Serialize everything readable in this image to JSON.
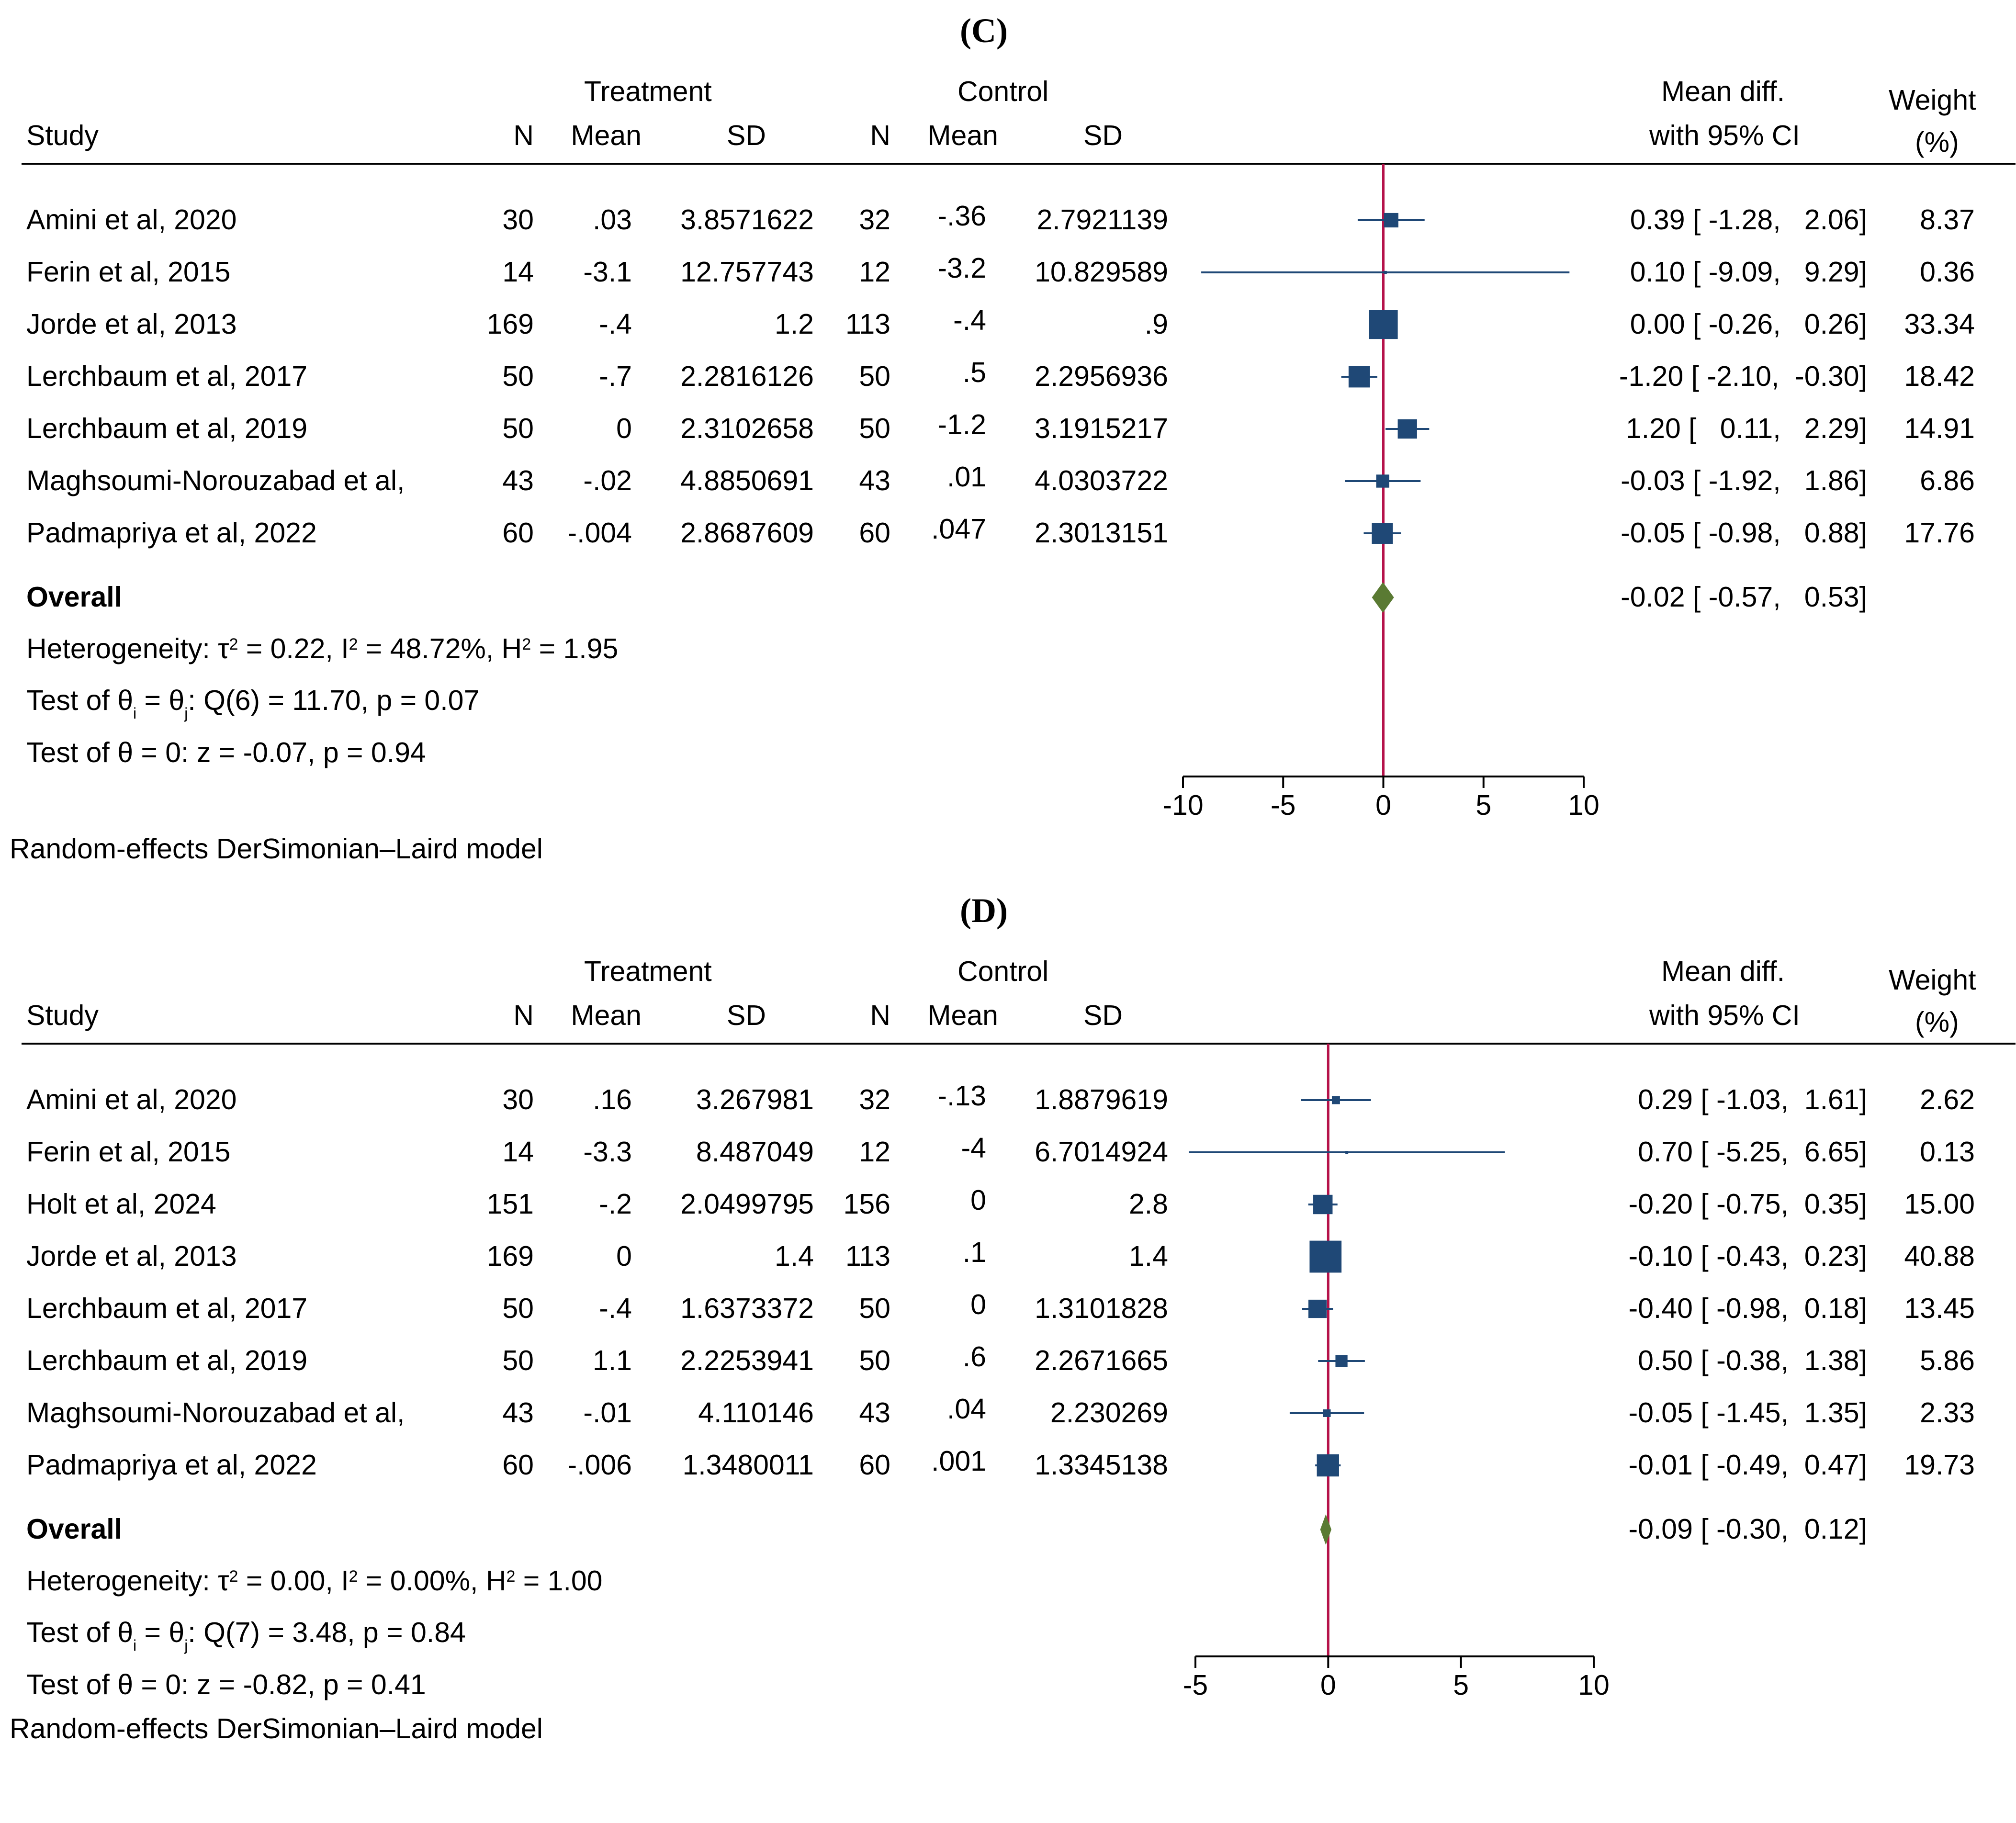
{
  "colors": {
    "marker": "#1f4876",
    "diamond": "#5a7a33",
    "refline": "#b5124a",
    "axis": "#000000"
  },
  "panels": [
    {
      "id": "C",
      "title": "(C)",
      "headers": {
        "study": "Study",
        "treatment": "Treatment",
        "control": "Control",
        "n": "N",
        "mean": "Mean",
        "sd": "SD",
        "md_line1": "Mean diff.",
        "md_line2": "with 95% CI",
        "weight_line1": "Weight",
        "weight_line2": "(%)"
      },
      "rows": [
        {
          "study": "Amini et al, 2020",
          "tn": "30",
          "tmean": ".03",
          "tsd": "3.8571622",
          "cn": "32",
          "cmean": "-.36",
          "csd": "2.7921139",
          "ci_text": "0.39 [ -1.28,   2.06]",
          "weight": "8.37"
        },
        {
          "study": "Ferin et al, 2015",
          "tn": "14",
          "tmean": "-3.1",
          "tsd": "12.757743",
          "cn": "12",
          "cmean": "-3.2",
          "csd": "10.829589",
          "ci_text": "0.10 [ -9.09,   9.29]",
          "weight": "0.36"
        },
        {
          "study": "Jorde et al, 2013",
          "tn": "169",
          "tmean": "-.4",
          "tsd": "1.2",
          "cn": "113",
          "cmean": "-.4",
          "csd": ".9",
          "ci_text": "0.00 [ -0.26,   0.26]",
          "weight": "33.34"
        },
        {
          "study": "Lerchbaum et al, 2017",
          "tn": "50",
          "tmean": "-.7",
          "tsd": "2.2816126",
          "cn": "50",
          "cmean": ".5",
          "csd": "2.2956936",
          "ci_text": "-1.20 [ -2.10,  -0.30]",
          "weight": "18.42"
        },
        {
          "study": "Lerchbaum et al, 2019",
          "tn": "50",
          "tmean": "0",
          "tsd": "2.3102658",
          "cn": "50",
          "cmean": "-1.2",
          "csd": "3.1915217",
          "ci_text": "1.20 [   0.11,   2.29]",
          "weight": "14.91"
        },
        {
          "study": "Maghsoumi-Norouzabad et al,",
          "tn": "43",
          "tmean": "-.02",
          "tsd": "4.8850691",
          "cn": "43",
          "cmean": ".01",
          "csd": "4.0303722",
          "ci_text": "-0.03 [ -1.92,   1.86]",
          "weight": "6.86"
        },
        {
          "study": "Padmapriya et al, 2022",
          "tn": "60",
          "tmean": "-.004",
          "tsd": "2.8687609",
          "cn": "60",
          "cmean": ".047",
          "csd": "2.3013151",
          "ci_text": "-0.05 [ -0.98,   0.88]",
          "weight": "17.76"
        }
      ],
      "overall": {
        "label": "Overall",
        "ci_text": "-0.02 [ -0.57,   0.53]"
      },
      "heterogeneity": {
        "prefix": "Heterogeneity: τ",
        "t2": " = 0.22, I",
        "i2": " = 48.72%, H",
        "h2": " = 1.95"
      },
      "test_q": {
        "prefix": "Test of θ",
        "mid": " = θ",
        "suffix": ": Q(6) = 11.70, p = 0.07"
      },
      "test_z": "Test of θ = 0: z = -0.07, p = 0.94",
      "model_note": "Random-effects DerSimonian–Laird model"
    },
    {
      "id": "D",
      "title": "(D)",
      "headers": {
        "study": "Study",
        "treatment": "Treatment",
        "control": "Control",
        "n": "N",
        "mean": "Mean",
        "sd": "SD",
        "md_line1": "Mean diff.",
        "md_line2": "with 95% CI",
        "weight_line1": "Weight",
        "weight_line2": "(%)"
      },
      "rows": [
        {
          "study": "Amini et al, 2020",
          "tn": "30",
          "tmean": ".16",
          "tsd": "3.267981",
          "cn": "32",
          "cmean": "-.13",
          "csd": "1.8879619",
          "ci_text": "0.29 [ -1.03,  1.61]",
          "weight": "2.62"
        },
        {
          "study": "Ferin et al, 2015",
          "tn": "14",
          "tmean": "-3.3",
          "tsd": "8.487049",
          "cn": "12",
          "cmean": "-4",
          "csd": "6.7014924",
          "ci_text": "0.70 [ -5.25,  6.65]",
          "weight": "0.13"
        },
        {
          "study": "Holt et al, 2024",
          "tn": "151",
          "tmean": "-.2",
          "tsd": "2.0499795",
          "cn": "156",
          "cmean": "0",
          "csd": "2.8",
          "ci_text": "-0.20 [ -0.75,  0.35]",
          "weight": "15.00"
        },
        {
          "study": "Jorde et al, 2013",
          "tn": "169",
          "tmean": "0",
          "tsd": "1.4",
          "cn": "113",
          "cmean": ".1",
          "csd": "1.4",
          "ci_text": "-0.10 [ -0.43,  0.23]",
          "weight": "40.88"
        },
        {
          "study": "Lerchbaum et al, 2017",
          "tn": "50",
          "tmean": "-.4",
          "tsd": "1.6373372",
          "cn": "50",
          "cmean": "0",
          "csd": "1.3101828",
          "ci_text": "-0.40 [ -0.98,  0.18]",
          "weight": "13.45"
        },
        {
          "study": "Lerchbaum et al, 2019",
          "tn": "50",
          "tmean": "1.1",
          "tsd": "2.2253941",
          "cn": "50",
          "cmean": ".6",
          "csd": "2.2671665",
          "ci_text": "0.50 [ -0.38,  1.38]",
          "weight": "5.86"
        },
        {
          "study": "Maghsoumi-Norouzabad et al,",
          "tn": "43",
          "tmean": "-.01",
          "tsd": "4.110146",
          "cn": "43",
          "cmean": ".04",
          "csd": "2.230269",
          "ci_text": "-0.05 [ -1.45,  1.35]",
          "weight": "2.33"
        },
        {
          "study": "Padmapriya et al, 2022",
          "tn": "60",
          "tmean": "-.006",
          "tsd": "1.3480011",
          "cn": "60",
          "cmean": ".001",
          "csd": "1.3345138",
          "ci_text": "-0.01 [ -0.49,  0.47]",
          "weight": "19.73"
        }
      ],
      "overall": {
        "label": "Overall",
        "ci_text": "-0.09 [ -0.30,  0.12]"
      },
      "heterogeneity": {
        "prefix": "Heterogeneity: τ",
        "t2": " = 0.00, I",
        "i2": " = 0.00%, H",
        "h2": " = 1.00"
      },
      "test_q": {
        "prefix": "Test of θ",
        "mid": " = θ",
        "suffix": ": Q(7) = 3.48, p = 0.84"
      },
      "test_z": "Test of θ = 0: z = -0.82, p = 0.41",
      "model_note": "Random-effects DerSimonian–Laird model"
    }
  ],
  "chart_data": [
    {
      "type": "forest",
      "title": "(C)",
      "xlim": [
        -10,
        10
      ],
      "xticks": [
        -10,
        -5,
        0,
        5,
        10
      ],
      "reference_line": 0,
      "studies": [
        {
          "label": "Amini et al, 2020",
          "estimate": 0.39,
          "lower": -1.28,
          "upper": 2.06,
          "weight": 8.37
        },
        {
          "label": "Ferin et al, 2015",
          "estimate": 0.1,
          "lower": -9.09,
          "upper": 9.29,
          "weight": 0.36
        },
        {
          "label": "Jorde et al, 2013",
          "estimate": 0.0,
          "lower": -0.26,
          "upper": 0.26,
          "weight": 33.34
        },
        {
          "label": "Lerchbaum et al, 2017",
          "estimate": -1.2,
          "lower": -2.1,
          "upper": -0.3,
          "weight": 18.42
        },
        {
          "label": "Lerchbaum et al, 2019",
          "estimate": 1.2,
          "lower": 0.11,
          "upper": 2.29,
          "weight": 14.91
        },
        {
          "label": "Maghsoumi-Norouzabad et al,",
          "estimate": -0.03,
          "lower": -1.92,
          "upper": 1.86,
          "weight": 6.86
        },
        {
          "label": "Padmapriya et al, 2022",
          "estimate": -0.05,
          "lower": -0.98,
          "upper": 0.88,
          "weight": 17.76
        }
      ],
      "overall": {
        "estimate": -0.02,
        "lower": -0.57,
        "upper": 0.53
      }
    },
    {
      "type": "forest",
      "title": "(D)",
      "xlim": [
        -5,
        10
      ],
      "xticks": [
        -5,
        0,
        5,
        10
      ],
      "reference_line": 0,
      "studies": [
        {
          "label": "Amini et al, 2020",
          "estimate": 0.29,
          "lower": -1.03,
          "upper": 1.61,
          "weight": 2.62
        },
        {
          "label": "Ferin et al, 2015",
          "estimate": 0.7,
          "lower": -5.25,
          "upper": 6.65,
          "weight": 0.13
        },
        {
          "label": "Holt et al, 2024",
          "estimate": -0.2,
          "lower": -0.75,
          "upper": 0.35,
          "weight": 15.0
        },
        {
          "label": "Jorde et al, 2013",
          "estimate": -0.1,
          "lower": -0.43,
          "upper": 0.23,
          "weight": 40.88
        },
        {
          "label": "Lerchbaum et al, 2017",
          "estimate": -0.4,
          "lower": -0.98,
          "upper": 0.18,
          "weight": 13.45
        },
        {
          "label": "Lerchbaum et al, 2019",
          "estimate": 0.5,
          "lower": -0.38,
          "upper": 1.38,
          "weight": 5.86
        },
        {
          "label": "Maghsoumi-Norouzabad et al,",
          "estimate": -0.05,
          "lower": -1.45,
          "upper": 1.35,
          "weight": 2.33
        },
        {
          "label": "Padmapriya et al, 2022",
          "estimate": -0.01,
          "lower": -0.49,
          "upper": 0.47,
          "weight": 19.73
        }
      ],
      "overall": {
        "estimate": -0.09,
        "lower": -0.3,
        "upper": 0.12
      }
    }
  ]
}
